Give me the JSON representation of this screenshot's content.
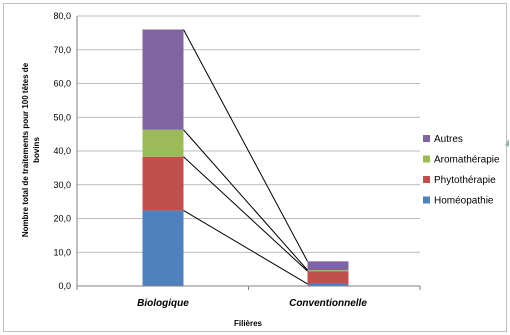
{
  "chart_data": {
    "type": "bar",
    "stacked": true,
    "categories": [
      "Biologique",
      "Conventionnelle"
    ],
    "series": [
      {
        "name": "Homéopathie",
        "color": "#4f81bd",
        "values": [
          22.4,
          0.6
        ]
      },
      {
        "name": "Phytothérapie",
        "color": "#c0504d",
        "values": [
          15.9,
          3.8
        ]
      },
      {
        "name": "Aromathérapie",
        "color": "#9bbb59",
        "values": [
          8.0,
          0.3
        ]
      },
      {
        "name": "Autres",
        "color": "#8064a2",
        "values": [
          29.7,
          2.6
        ]
      }
    ],
    "xlabel": "Filières",
    "ylabel": "Nombre total de traitements pour 100 têtes de bovins",
    "ylabel_lines": [
      "Nombre total de traitements pour 100 têtes de",
      "bovins"
    ],
    "ylim": [
      0,
      80
    ],
    "yticks": [
      "0,0",
      "10,0",
      "20,0",
      "30,0",
      "40,0",
      "50,0",
      "60,0",
      "70,0",
      "80,0"
    ],
    "grid": true,
    "legend_position": "right",
    "legend_order": [
      "Autres",
      "Aromathérapie",
      "Phytothérapie",
      "Homéopathie"
    ],
    "connector_lines": true
  }
}
